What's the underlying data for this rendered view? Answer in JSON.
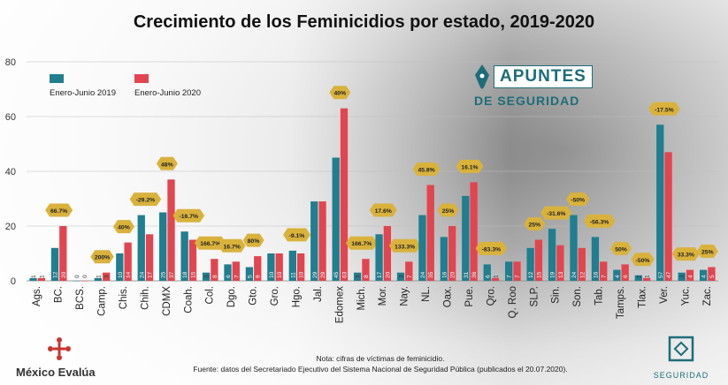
{
  "header": {
    "title": "Crecimiento de los Feminicidios por estado, 2019-2020"
  },
  "logo": {
    "line1": "APUNTES",
    "line2": "DE SEGURIDAD"
  },
  "footer": {
    "brand": "México Evalúa",
    "note": "Nota: cifras de víctimas de feminicidio.",
    "source": "Fuente: datos del Secretariado Ejecutivo del Sistema Nacional de Seguridad Pública (publicados el 20.07.2020).",
    "seg_label": "SEGURIDAD"
  },
  "colors": {
    "s2019": "#1f7e8f",
    "s2020": "#e2454f",
    "badge": "#d9b23c"
  },
  "chart_data": {
    "type": "bar",
    "title": "Crecimiento de los Feminicidios por estado, 2019-2020",
    "xlabel": "",
    "ylabel": "",
    "ylim": [
      0,
      80
    ],
    "yticks": [
      0,
      20,
      40,
      60,
      80
    ],
    "legend": "top-left",
    "categories": [
      "Ags.",
      "BC.",
      "BCS.",
      "Camp.",
      "Chis.",
      "Chih.",
      "CDMX",
      "Coah.",
      "Col.",
      "Dgo.",
      "Gto.",
      "Gro.",
      "Hgo.",
      "Jal.",
      "Edomex",
      "Mich.",
      "Mor.",
      "Nay.",
      "NL.",
      "Oax.",
      "Pue.",
      "Qro.",
      "Q. Roo",
      "SLP.",
      "Sin.",
      "Son.",
      "Tab.",
      "Tamps.",
      "Tlax.",
      "Ver.",
      "Yuc.",
      "Zac."
    ],
    "series": [
      {
        "name": "Enero-Junio 2019",
        "values": [
          1,
          12,
          0,
          1,
          10,
          24,
          25,
          18,
          3,
          6,
          5,
          10,
          11,
          29,
          45,
          3,
          17,
          3,
          24,
          16,
          31,
          6,
          7,
          12,
          19,
          24,
          16,
          4,
          2,
          57,
          3,
          4
        ]
      },
      {
        "name": "Enero-Junio 2020",
        "values": [
          1,
          20,
          0,
          3,
          14,
          17,
          37,
          15,
          8,
          7,
          9,
          10,
          10,
          29,
          63,
          8,
          20,
          7,
          35,
          20,
          36,
          1,
          7,
          15,
          13,
          12,
          7,
          6,
          1,
          47,
          4,
          5
        ]
      }
    ],
    "changes": [
      "",
      "66.7%",
      "",
      "200%",
      "40%",
      "-29.2%",
      "48%",
      "-16.7%",
      "166.7%",
      "16.7%",
      "80%",
      "",
      "-9.1%",
      "",
      "40%",
      "166.7%",
      "17.6%",
      "133.3%",
      "45.8%",
      "25%",
      "16.1%",
      "-83.3%",
      "",
      "25%",
      "-31.6%",
      "-50%",
      "-56.3%",
      "50%",
      "-50%",
      "-17.5%",
      "33.3%",
      "25%"
    ]
  }
}
